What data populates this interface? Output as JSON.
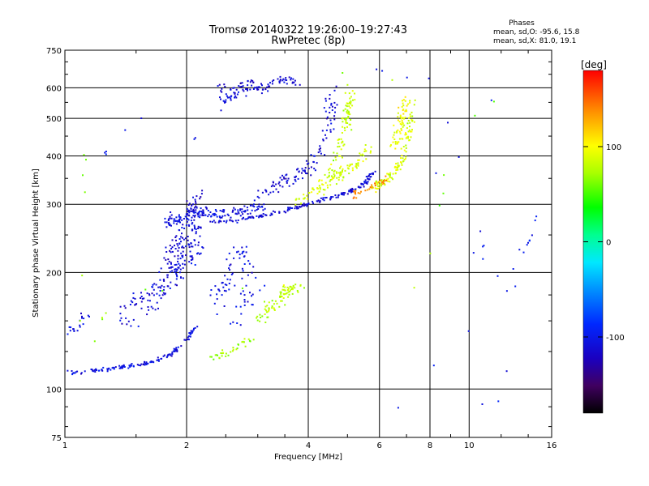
{
  "title_line1": "Tromsø 20140322 19:26:00–19:27:43",
  "title_line2": "RwPretec (8p)",
  "phases_header": "Phases",
  "phases_line1": "mean, sd,O: -95.6, 15.8",
  "phases_line2": "mean, sd,X:  81.0, 19.1",
  "colorbar": {
    "label": "[deg]",
    "ticks": [
      {
        "value": 100,
        "label": "100"
      },
      {
        "value": 0,
        "label": "0"
      },
      {
        "value": -100,
        "label": "-100"
      }
    ],
    "range": [
      -180,
      180
    ]
  },
  "chart_data": {
    "type": "scatter",
    "xlabel": "Frequency [MHz]",
    "ylabel": "Stationary phase Virtual Height [km]",
    "x_scale": "log",
    "y_scale": "log",
    "xlim": [
      1,
      16
    ],
    "ylim": [
      75,
      750
    ],
    "grid": true,
    "x_ticks": [
      {
        "value": 1,
        "label": "1"
      },
      {
        "value": 2,
        "label": "2"
      },
      {
        "value": 4,
        "label": "4"
      },
      {
        "value": 6,
        "label": "6"
      },
      {
        "value": 8,
        "label": "8"
      },
      {
        "value": 10,
        "label": "10"
      },
      {
        "value": 16,
        "label": "16"
      }
    ],
    "y_ticks": [
      {
        "value": 75,
        "label": "75"
      },
      {
        "value": 100,
        "label": "100"
      },
      {
        "value": 200,
        "label": "200"
      },
      {
        "value": 300,
        "label": "300"
      },
      {
        "value": 400,
        "label": "400"
      },
      {
        "value": 500,
        "label": "500"
      },
      {
        "value": 600,
        "label": "600"
      },
      {
        "value": 750,
        "label": "750"
      }
    ],
    "x_gridlines": [
      2,
      4,
      6,
      8,
      10
    ],
    "y_gridlines": [
      100,
      200,
      300,
      400,
      500,
      600
    ],
    "clusters": [
      {
        "points": [
          [
            1.0,
            111
          ],
          [
            1.1,
            110
          ],
          [
            1.2,
            112
          ],
          [
            1.3,
            113
          ],
          [
            1.4,
            114
          ],
          [
            1.55,
            116
          ],
          [
            1.7,
            119
          ],
          [
            1.85,
            124
          ],
          [
            2.0,
            133
          ],
          [
            2.1,
            145
          ]
        ],
        "phase": -105,
        "spread": 0.015,
        "density": 140
      },
      {
        "points": [
          [
            1.0,
            140
          ],
          [
            1.08,
            145
          ],
          [
            1.12,
            155
          ]
        ],
        "phase": -105,
        "spread": 0.04,
        "density": 20
      },
      {
        "points": [
          [
            1.4,
            150
          ],
          [
            1.6,
            170
          ],
          [
            1.8,
            190
          ],
          [
            1.95,
            210
          ],
          [
            2.05,
            230
          ],
          [
            2.1,
            260
          ]
        ],
        "phase": -110,
        "spread": 0.1,
        "density": 170
      },
      {
        "points": [
          [
            1.85,
            210
          ],
          [
            1.95,
            250
          ],
          [
            2.05,
            290
          ],
          [
            2.15,
            310
          ]
        ],
        "phase": -115,
        "spread": 0.08,
        "density": 90
      },
      {
        "points": [
          [
            1.8,
            270
          ],
          [
            2.0,
            280
          ],
          [
            2.2,
            285
          ],
          [
            2.5,
            280
          ],
          [
            2.8,
            290
          ],
          [
            3.1,
            300
          ]
        ],
        "phase": -105,
        "spread": 0.05,
        "density": 150
      },
      {
        "points": [
          [
            2.3,
            270
          ],
          [
            2.8,
            276
          ],
          [
            3.2,
            282
          ],
          [
            3.6,
            292
          ],
          [
            4.0,
            300
          ],
          [
            4.5,
            312
          ],
          [
            5.0,
            322
          ],
          [
            5.5,
            338
          ],
          [
            5.9,
            370
          ]
        ],
        "phase": -110,
        "spread": 0.015,
        "density": 170
      },
      {
        "points": [
          [
            2.3,
            165
          ],
          [
            2.5,
            190
          ],
          [
            2.7,
            230
          ],
          [
            2.9,
            180
          ],
          [
            2.6,
            150
          ]
        ],
        "phase": -105,
        "spread": 0.07,
        "density": 80
      },
      {
        "points": [
          [
            3.0,
            320
          ],
          [
            3.4,
            340
          ],
          [
            3.8,
            360
          ],
          [
            4.1,
            380
          ],
          [
            4.4,
            440
          ],
          [
            4.55,
            520
          ],
          [
            4.6,
            600
          ]
        ],
        "phase": -112,
        "spread": 0.05,
        "density": 110
      },
      {
        "points": [
          [
            2.4,
            560
          ],
          [
            2.7,
            580
          ],
          [
            3.0,
            600
          ],
          [
            3.4,
            630
          ],
          [
            3.8,
            615
          ]
        ],
        "phase": -110,
        "spread": 0.04,
        "density": 80
      },
      {
        "points": [
          [
            2.4,
            600
          ],
          [
            2.7,
            610
          ],
          [
            3.1,
            625
          ]
        ],
        "phase": -115,
        "spread": 0.03,
        "density": 25
      },
      {
        "points": [
          [
            2.3,
            120
          ],
          [
            2.6,
            125
          ],
          [
            2.9,
            135
          ]
        ],
        "phase": 70,
        "spread": 0.03,
        "density": 35
      },
      {
        "points": [
          [
            3.0,
            150
          ],
          [
            3.2,
            160
          ],
          [
            3.4,
            172
          ],
          [
            3.6,
            182
          ],
          [
            3.8,
            185
          ]
        ],
        "phase": 78,
        "spread": 0.05,
        "density": 80
      },
      {
        "points": [
          [
            3.7,
            300
          ],
          [
            4.0,
            320
          ],
          [
            4.4,
            340
          ],
          [
            4.8,
            360
          ],
          [
            5.2,
            380
          ],
          [
            5.6,
            420
          ]
        ],
        "phase": 88,
        "spread": 0.04,
        "density": 100
      },
      {
        "points": [
          [
            4.3,
            320
          ],
          [
            4.6,
            380
          ],
          [
            4.9,
            450
          ],
          [
            5.0,
            520
          ],
          [
            5.1,
            600
          ]
        ],
        "phase": 82,
        "spread": 0.04,
        "density": 90
      },
      {
        "points": [
          [
            5.8,
            330
          ],
          [
            6.2,
            345
          ],
          [
            6.6,
            365
          ],
          [
            6.9,
            400
          ],
          [
            7.1,
            470
          ],
          [
            7.2,
            560
          ]
        ],
        "phase": 88,
        "spread": 0.03,
        "density": 110
      },
      {
        "points": [
          [
            6.5,
            420
          ],
          [
            6.8,
            500
          ],
          [
            7.0,
            560
          ]
        ],
        "phase": 95,
        "spread": 0.04,
        "density": 60
      },
      {
        "points": [
          [
            5.0,
            310
          ],
          [
            5.5,
            330
          ],
          [
            6.0,
            340
          ],
          [
            6.5,
            355
          ]
        ],
        "phase": 140,
        "spread": 0.03,
        "density": 30
      },
      {
        "points": [
          [
            1.2,
            380
          ],
          [
            1.5,
            520
          ],
          [
            1.7,
            400
          ],
          [
            2.1,
            420
          ],
          [
            2.0,
            560
          ],
          [
            8.5,
            360
          ],
          [
            9.0,
            500
          ],
          [
            10.2,
            290
          ],
          [
            11.0,
            220
          ],
          [
            12.5,
            170
          ],
          [
            13.5,
            230
          ],
          [
            14.5,
            250
          ],
          [
            15.0,
            290
          ],
          [
            13.0,
            200
          ],
          [
            9.5,
            230
          ],
          [
            8.7,
            150
          ],
          [
            10.4,
            160
          ],
          [
            11.5,
            620
          ],
          [
            5.5,
            90
          ],
          [
            6.0,
            80
          ],
          [
            9.0,
            130
          ],
          [
            12.5,
            110
          ],
          [
            11.0,
            78
          ],
          [
            7.8,
            640
          ],
          [
            8.0,
            600
          ],
          [
            6.8,
            660
          ],
          [
            5.2,
            660
          ]
        ],
        "phase": -100,
        "spread": 0.02,
        "density": 40
      },
      {
        "points": [
          [
            1.1,
            340
          ],
          [
            1.15,
            510
          ],
          [
            1.08,
            90
          ],
          [
            1.3,
            180
          ],
          [
            7.3,
            180
          ],
          [
            8.2,
            240
          ],
          [
            9.0,
            450
          ],
          [
            15.0,
            690
          ],
          [
            7.0,
            610
          ],
          [
            6.2,
            625
          ],
          [
            4.8,
            660
          ]
        ],
        "phase": 60,
        "spread": 0.02,
        "density": 22
      }
    ]
  }
}
